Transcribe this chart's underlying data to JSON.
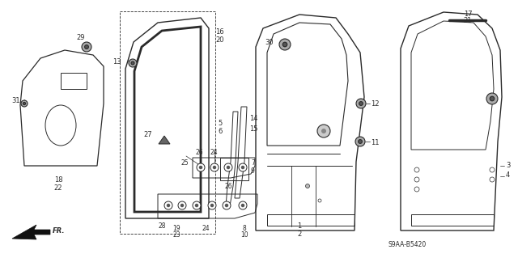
{
  "bg_color": "#ffffff",
  "line_color": "#2a2a2a",
  "diagram_code": "S9AA-B5420",
  "fig_w": 6.4,
  "fig_h": 3.19,
  "dpi": 100
}
